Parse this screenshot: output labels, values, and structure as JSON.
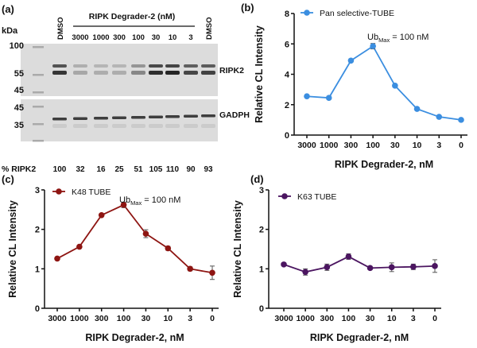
{
  "blot": {
    "panel_label": "(a)",
    "kda_label": "kDa",
    "header": "RIPK Degrader-2 (nM)",
    "lanes": [
      "DMSO",
      "3000",
      "1000",
      "300",
      "100",
      "30",
      "10",
      "3",
      "DMSO"
    ],
    "markers_top": [
      "100",
      "55",
      "45"
    ],
    "markers_bottom": [
      "45",
      "35"
    ],
    "band_top_label": "RIPK2",
    "band_bottom_label": "GADPH",
    "percent_label": "% RIPK2",
    "percent_values": [
      "100",
      "32",
      "16",
      "25",
      "51",
      "105",
      "110",
      "90",
      "93"
    ]
  },
  "chart_data": [
    {
      "panel": "(b)",
      "type": "line",
      "legend": "Pan selective-TUBE",
      "legend_placement": "top-left",
      "annotation": {
        "main": "Ub",
        "sub": "Max",
        "rest": " = 100 nM"
      },
      "categories": [
        "3000",
        "1000",
        "300",
        "100",
        "30",
        "10",
        "3",
        "0"
      ],
      "values": [
        2.55,
        2.45,
        4.9,
        5.85,
        3.25,
        1.72,
        1.2,
        1.0
      ],
      "errors": [
        0.05,
        0.1,
        0.1,
        0.18,
        0.05,
        0.05,
        0.05,
        0.03
      ],
      "xlabel": "RIPK Degrader-2, nM",
      "ylabel": "Relative CL Intensity",
      "ylim": [
        0,
        8
      ],
      "yticks": [
        "0",
        "2",
        "4",
        "6",
        "8"
      ],
      "color": "#3b8ee0"
    },
    {
      "panel": "(c)",
      "type": "line",
      "legend": "K48 TUBE",
      "legend_placement": "top-left",
      "annotation": {
        "main": "Ub",
        "sub": "Max",
        "rest": " = 100 nM"
      },
      "categories": [
        "3000",
        "1000",
        "300",
        "100",
        "30",
        "10",
        "3",
        "0"
      ],
      "values": [
        1.26,
        1.56,
        2.36,
        2.62,
        1.89,
        1.52,
        1.0,
        0.9
      ],
      "errors": [
        0.02,
        0.03,
        0.03,
        0.07,
        0.1,
        0.05,
        0.05,
        0.17
      ],
      "xlabel": "RIPK Degrader-2, nM",
      "ylabel": "Relative CL Intensity",
      "ylim": [
        0,
        3
      ],
      "yticks": [
        "0",
        "1",
        "2",
        "3"
      ],
      "color": "#8e1512"
    },
    {
      "panel": "(d)",
      "type": "line",
      "legend": "K63 TUBE",
      "legend_placement": "top-left",
      "categories": [
        "3000",
        "1000",
        "300",
        "100",
        "30",
        "10",
        "3",
        "0"
      ],
      "values": [
        1.11,
        0.92,
        1.04,
        1.31,
        1.02,
        1.04,
        1.05,
        1.07
      ],
      "errors": [
        0.03,
        0.08,
        0.08,
        0.07,
        0.03,
        0.11,
        0.07,
        0.16
      ],
      "xlabel": "RIPK Degrader-2, nM",
      "ylabel": "Relative CL Intensity",
      "ylim": [
        0,
        3
      ],
      "yticks": [
        "0",
        "1",
        "2",
        "3"
      ],
      "color": "#4b1560"
    }
  ]
}
